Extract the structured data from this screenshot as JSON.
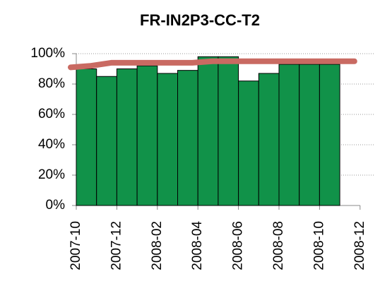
{
  "chart_data": {
    "type": "bar",
    "title": "FR-IN2P3-CC-T2",
    "categories": [
      "2007-10",
      null,
      "2007-12",
      null,
      "2008-02",
      null,
      "2008-04",
      null,
      "2008-06",
      null,
      "2008-08",
      null,
      "2008-10",
      null,
      "2008-12"
    ],
    "series": [
      {
        "type": "bar",
        "color": "#119249",
        "values": [
          90,
          85,
          90,
          92,
          87,
          89,
          98,
          98,
          82,
          87,
          93,
          93,
          93,
          null,
          null
        ]
      },
      {
        "type": "line",
        "color": "#c96a62",
        "values": [
          91,
          92,
          94,
          94,
          94,
          94,
          94,
          95,
          95,
          95,
          95,
          95,
          95,
          95,
          95
        ]
      }
    ],
    "ylim": [
      0,
      100
    ],
    "yticks": [
      {
        "value": 0,
        "label": "0%"
      },
      {
        "value": 20,
        "label": "20%"
      },
      {
        "value": 40,
        "label": "40%"
      },
      {
        "value": 60,
        "label": "60%"
      },
      {
        "value": 80,
        "label": "80%"
      },
      {
        "value": 100,
        "label": "100%"
      }
    ],
    "grid": true
  }
}
